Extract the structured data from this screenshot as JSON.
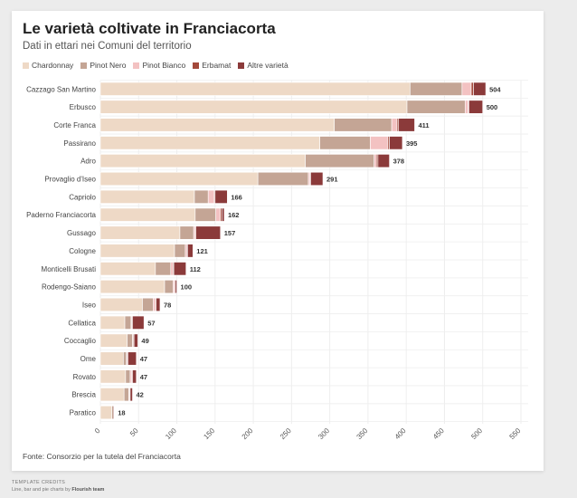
{
  "title": "Le varietà coltivate in Franciacorta",
  "subtitle": "Dati in ettari nei Comuni del territorio",
  "source": "Fonte: Consorzio per la tutela del Franciacorta",
  "credits": {
    "heading": "TEMPLATE CREDITS",
    "line_prefix": "Line, bar and pie charts by ",
    "brand": "Flourish team"
  },
  "chart_data": {
    "type": "bar",
    "orientation": "horizontal",
    "stacked": true,
    "title": "Le varietà coltivate in Franciacorta",
    "subtitle": "Dati in ettari nei Comuni del territorio",
    "xlim": [
      0,
      550
    ],
    "xticks": [
      0,
      50,
      100,
      150,
      200,
      250,
      300,
      350,
      400,
      450,
      500,
      550
    ],
    "categories": [
      "Cazzago San Martino",
      "Erbusco",
      "Corte Franca",
      "Passirano",
      "Adro",
      "Provaglio d'Iseo",
      "Capriolo",
      "Paderno Franciacorta",
      "Gussago",
      "Cologne",
      "Monticelli Brusati",
      "Rodengo-Saiano",
      "Iseo",
      "Cellatica",
      "Coccaglio",
      "Ome",
      "Rovato",
      "Brescia",
      "Paratico"
    ],
    "totals": [
      504,
      500,
      411,
      395,
      378,
      291,
      166,
      162,
      157,
      121,
      112,
      100,
      78,
      57,
      49,
      47,
      47,
      42,
      18
    ],
    "series": [
      {
        "name": "Chardonnay",
        "color": "#eed9c6",
        "values": [
          405,
          401,
          306,
          287,
          268,
          206,
          123,
          124,
          104,
          97,
          72,
          84,
          55,
          32,
          35,
          30,
          33,
          31,
          15
        ]
      },
      {
        "name": "Pinot Nero",
        "color": "#c4a595",
        "values": [
          68,
          76,
          75,
          66,
          90,
          66,
          18,
          27,
          18,
          14,
          20,
          11,
          14,
          8,
          7,
          4,
          6,
          6,
          2
        ]
      },
      {
        "name": "Pinot Bianco",
        "color": "#f3c2c2",
        "values": [
          12,
          4,
          7,
          23,
          3,
          2,
          8,
          6,
          2,
          2,
          3,
          2,
          3,
          1,
          1,
          1,
          2,
          1,
          0
        ]
      },
      {
        "name": "Erbamat",
        "color": "#a3493b",
        "values": [
          3,
          1,
          2,
          2,
          2,
          1,
          1,
          2,
          1,
          1,
          1,
          1,
          1,
          1,
          1,
          1,
          1,
          1,
          0
        ]
      },
      {
        "name": "Altre varietà",
        "color": "#8b3a3a",
        "values": [
          16,
          18,
          21,
          17,
          15,
          16,
          16,
          3,
          32,
          7,
          16,
          2,
          5,
          15,
          5,
          11,
          5,
          3,
          1
        ]
      }
    ]
  }
}
